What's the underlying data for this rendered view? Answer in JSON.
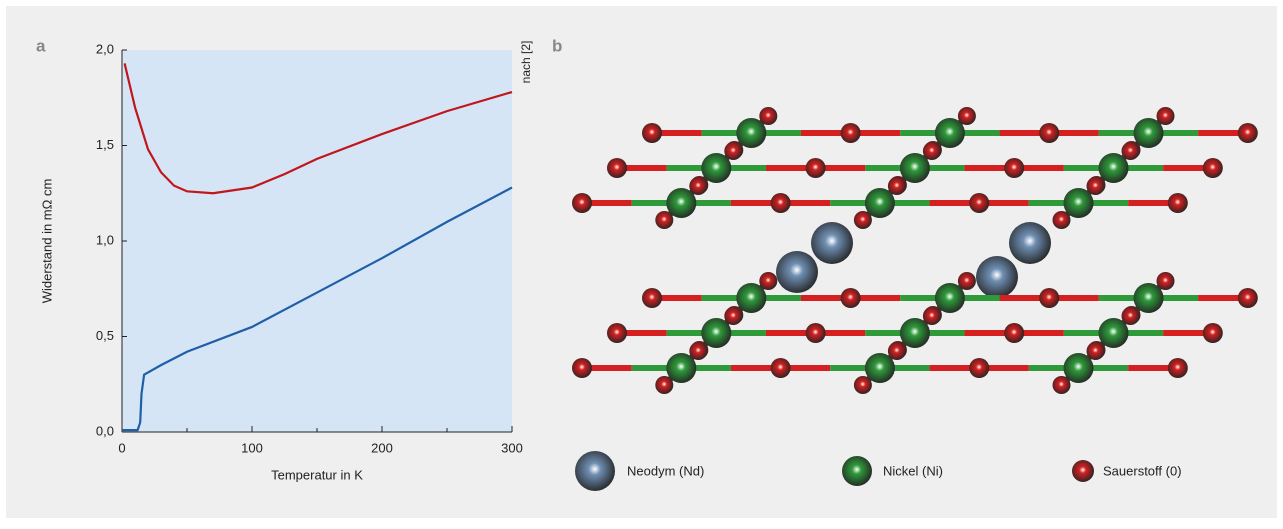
{
  "chart_data": {
    "type": "line",
    "xlabel": "Temperatur in K",
    "ylabel": "Widerstand in mΩ cm",
    "xlim": [
      0,
      300
    ],
    "ylim": [
      0,
      2
    ],
    "xticks": [
      0,
      100,
      200,
      300
    ],
    "xminorticks": [
      50,
      150,
      250
    ],
    "yticks": [
      {
        "value": 0,
        "label": "0,0"
      },
      {
        "value": 0.5,
        "label": "0,5"
      },
      {
        "value": 1,
        "label": "1,0"
      },
      {
        "value": 1.5,
        "label": "1,5"
      },
      {
        "value": 2,
        "label": "2,0"
      }
    ],
    "background": "#d5e5f6",
    "series": [
      {
        "color": "#c0161c",
        "x": [
          2,
          10,
          20,
          30,
          40,
          50,
          70,
          100,
          125,
          150,
          200,
          250,
          300
        ],
        "values": [
          1.93,
          1.7,
          1.48,
          1.36,
          1.29,
          1.26,
          1.25,
          1.28,
          1.35,
          1.43,
          1.56,
          1.68,
          1.78
        ]
      },
      {
        "color": "#1f5fa8",
        "x": [
          0,
          12,
          14,
          15,
          17,
          30,
          50,
          100,
          150,
          200,
          250,
          300
        ],
        "values": [
          0.01,
          0.01,
          0.05,
          0.2,
          0.3,
          0.35,
          0.42,
          0.55,
          0.73,
          0.91,
          1.1,
          1.28
        ]
      }
    ]
  },
  "panel_labels": [
    "a",
    "b"
  ],
  "source": "nach [2]",
  "structure_legend": [
    {
      "label": "Neodym (Nd)",
      "color": "#6f8fb3"
    },
    {
      "label": "Nickel (Ni)",
      "color": "#2e9a3a"
    },
    {
      "label": "Sauerstoff (0)",
      "color": "#d42020"
    }
  ]
}
